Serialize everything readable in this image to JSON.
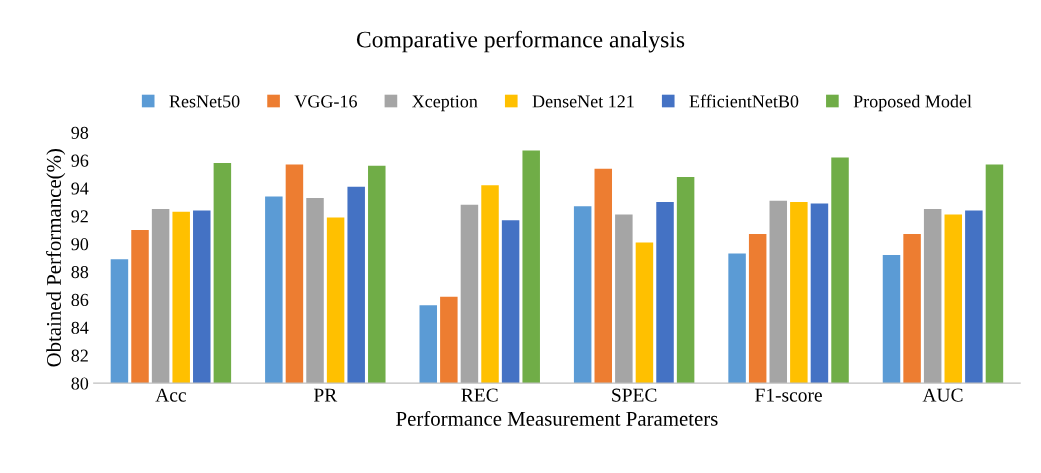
{
  "chart_data": {
    "type": "bar",
    "title": "Comparative performance analysis",
    "xlabel": "Performance Measurement Parameters",
    "ylabel": "Obtained Performance(%)",
    "categories": [
      "Acc",
      "PR",
      "REC",
      "SPEC",
      "F1-score",
      "AUC"
    ],
    "series": [
      {
        "name": "ResNet50",
        "color": "#5b9bd5",
        "values": [
          88.9,
          93.4,
          85.6,
          92.7,
          89.3,
          89.2
        ]
      },
      {
        "name": "VGG-16",
        "color": "#ed7d31",
        "values": [
          91.0,
          95.7,
          86.2,
          95.4,
          90.7,
          90.7
        ]
      },
      {
        "name": "Xception",
        "color": "#a5a5a5",
        "values": [
          92.5,
          93.3,
          92.8,
          92.1,
          93.1,
          92.5
        ]
      },
      {
        "name": "DenseNet 121",
        "color": "#ffc000",
        "values": [
          92.3,
          91.9,
          94.2,
          90.1,
          93.0,
          92.1
        ]
      },
      {
        "name": "EfficientNetB0",
        "color": "#4472c4",
        "values": [
          92.4,
          94.1,
          91.7,
          93.0,
          92.9,
          92.4
        ]
      },
      {
        "name": "Proposed Model",
        "color": "#70ad47",
        "values": [
          95.8,
          95.6,
          96.7,
          94.8,
          96.2,
          95.7
        ]
      }
    ],
    "ylim": [
      80,
      98
    ],
    "yticks": [
      80,
      82,
      84,
      86,
      88,
      90,
      92,
      94,
      96,
      98
    ],
    "grid": false,
    "legend": "top"
  }
}
